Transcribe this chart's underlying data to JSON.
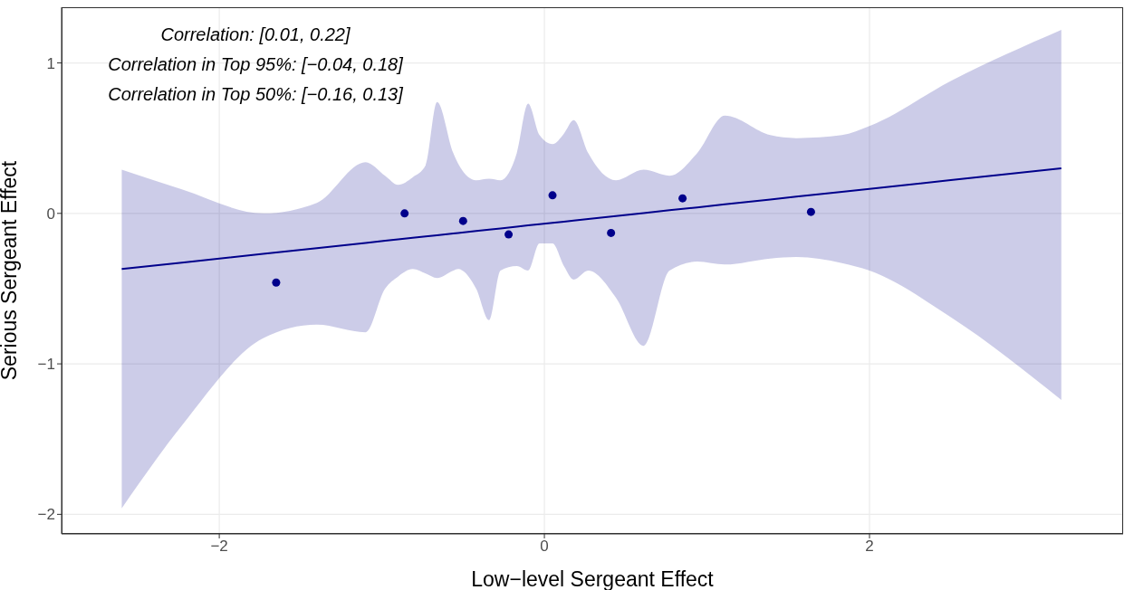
{
  "chart_data": {
    "type": "scatter",
    "xlabel": "Low−level Sergeant Effect",
    "ylabel": "Serious Sergeant Effect",
    "annotations": [
      "Correlation: [0.01, 0.22]",
      "Correlation in Top 95%: [−0.04, 0.18]",
      "Correlation in Top 50%: [−0.16, 0.13]"
    ],
    "xlim": [
      -2.97,
      3.56
    ],
    "ylim": [
      -2.13,
      1.37
    ],
    "xticks": [
      {
        "value": -2,
        "label": "−2"
      },
      0,
      2
    ],
    "yticks": [
      {
        "value": -2,
        "label": "−2"
      },
      {
        "value": -1,
        "label": "−1"
      },
      0,
      1
    ],
    "grid": true,
    "marker": "circle",
    "series": [
      {
        "type": "line",
        "color": "#00008b",
        "marker": "none",
        "x": [
          -2.6,
          -2.23,
          -1.73,
          -1.4,
          -1.1,
          -0.98,
          -0.9,
          -0.81,
          -0.73,
          -0.66,
          -0.56,
          -0.53,
          -0.42,
          -0.34,
          -0.27,
          -0.17,
          -0.1,
          -0.03,
          0.05,
          0.12,
          0.18,
          0.27,
          0.44,
          0.61,
          0.77,
          0.94,
          1.11,
          1.39,
          1.55,
          1.83,
          2.0,
          2.5,
          3.18
        ],
        "values": [
          -0.37,
          -0.327,
          -0.269,
          -0.231,
          -0.196,
          -0.182,
          -0.173,
          -0.162,
          -0.153,
          -0.145,
          -0.133,
          -0.13,
          -0.117,
          -0.108,
          -0.1,
          -0.088,
          -0.08,
          -0.072,
          -0.063,
          -0.055,
          -0.048,
          -0.037,
          -0.018,
          0.002,
          0.021,
          0.04,
          0.06,
          0.092,
          0.111,
          0.143,
          0.163,
          0.221,
          0.3
        ],
        "lower": [
          -1.96,
          -1.41,
          -0.83,
          -0.74,
          -0.79,
          -0.5,
          -0.42,
          -0.37,
          -0.4,
          -0.43,
          -0.38,
          -0.37,
          -0.5,
          -0.71,
          -0.38,
          -0.35,
          -0.38,
          -0.2,
          -0.2,
          -0.35,
          -0.44,
          -0.38,
          -0.56,
          -0.88,
          -0.38,
          -0.32,
          -0.34,
          -0.3,
          -0.29,
          -0.33,
          -0.38,
          -0.69,
          -1.24
        ],
        "upper": [
          0.29,
          0.16,
          0.0,
          0.07,
          0.34,
          0.25,
          0.19,
          0.24,
          0.32,
          0.74,
          0.4,
          0.33,
          0.22,
          0.23,
          0.22,
          0.4,
          0.73,
          0.52,
          0.46,
          0.53,
          0.62,
          0.4,
          0.22,
          0.29,
          0.25,
          0.4,
          0.65,
          0.52,
          0.5,
          0.52,
          0.58,
          0.88,
          1.22
        ]
      },
      {
        "color": "#00008b",
        "x": [
          -1.65,
          -0.86,
          -0.5,
          -0.22,
          0.05,
          0.41,
          0.85,
          1.64
        ],
        "values": [
          -0.46,
          0.0,
          -0.05,
          -0.14,
          0.12,
          -0.13,
          0.1,
          0.01
        ]
      }
    ]
  }
}
